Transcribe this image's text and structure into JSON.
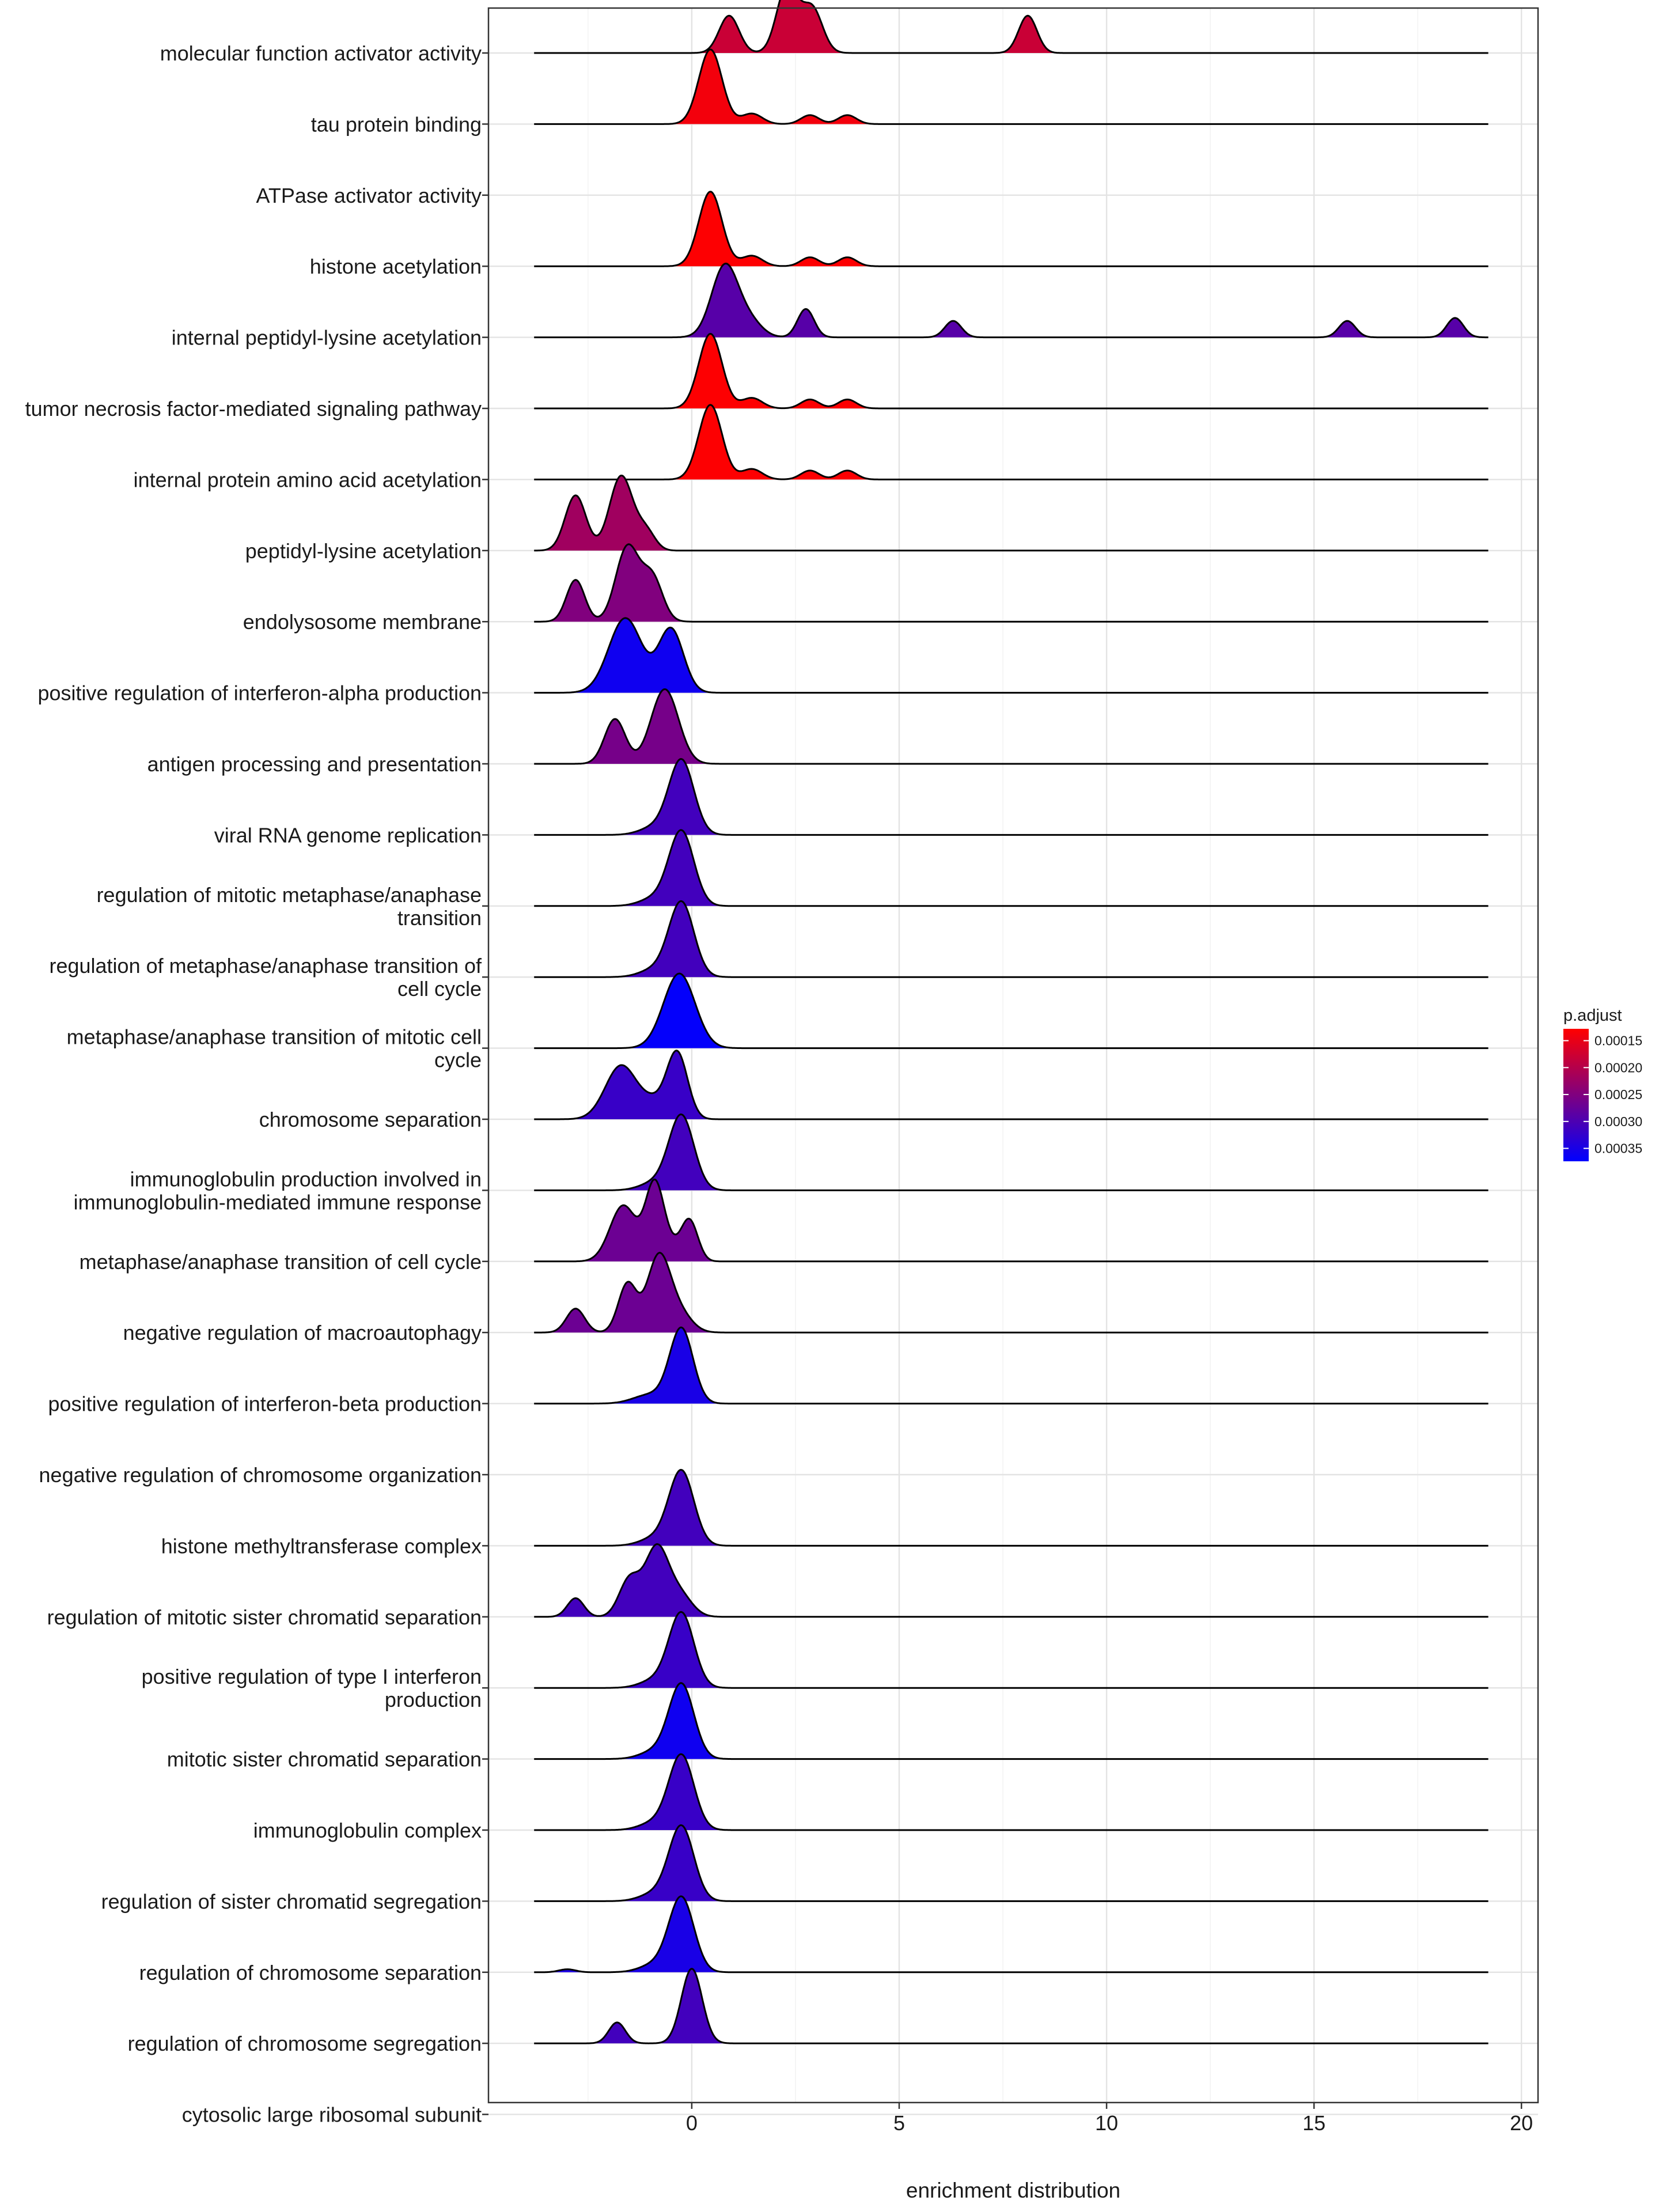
{
  "chart_data": {
    "type": "ridgeline",
    "title": "",
    "xlabel": "enrichment distribution",
    "ylabel": "",
    "xlim": [
      -4.9,
      20.4
    ],
    "x_ticks": [
      0,
      5,
      10,
      15,
      20
    ],
    "x_tick_labels": [
      "0",
      "5",
      "10",
      "15",
      "20"
    ],
    "grid": true,
    "legend": {
      "title": "p.adjust",
      "placement": "right",
      "ticks": [
        "0.00015",
        "0.00020",
        "0.00025",
        "0.00030",
        "0.00035"
      ],
      "tick_values": [
        0.00015,
        0.0002,
        0.00025,
        0.0003,
        0.00035
      ],
      "range": [
        0.000128,
        0.000374
      ],
      "low_color": "#ff0000",
      "high_color": "#0000ff"
    },
    "series": [
      {
        "name": "molecular function activator activity",
        "lines": [
          "molecular function activator activity"
        ],
        "p_adjust": 0.00018,
        "xmin": -3.8,
        "xmax": 19.2,
        "peaks": [
          [
            0.9,
            0.24,
            0.5
          ],
          [
            2.3,
            0.25,
            0.9
          ],
          [
            2.9,
            0.25,
            0.6
          ],
          [
            8.1,
            0.22,
            0.5
          ]
        ]
      },
      {
        "name": "tau protein binding",
        "lines": [
          "tau protein binding"
        ],
        "p_adjust": 0.00014,
        "xmin": -3.8,
        "xmax": 19.2,
        "peaks": [
          [
            0.45,
            0.28,
            1.0
          ],
          [
            1.45,
            0.25,
            0.14
          ],
          [
            2.85,
            0.22,
            0.12
          ],
          [
            3.75,
            0.22,
            0.12
          ]
        ]
      },
      {
        "name": "ATPase activator activity",
        "lines": [
          "ATPase activator activity"
        ],
        "p_adjust": 0.00013,
        "xmin": -3.8,
        "xmax": 19.2,
        "peaks": []
      },
      {
        "name": "histone acetylation",
        "lines": [
          "histone acetylation"
        ],
        "p_adjust": 0.00013,
        "xmin": -3.8,
        "xmax": 19.2,
        "peaks": [
          [
            0.45,
            0.28,
            1.0
          ],
          [
            1.45,
            0.25,
            0.14
          ],
          [
            2.85,
            0.22,
            0.12
          ],
          [
            3.75,
            0.22,
            0.12
          ]
        ]
      },
      {
        "name": "internal peptidyl-lysine acetylation",
        "lines": [
          "internal peptidyl-lysine acetylation"
        ],
        "p_adjust": 0.00029,
        "xmin": -3.8,
        "xmax": 19.2,
        "peaks": [
          [
            0.8,
            0.32,
            0.96
          ],
          [
            1.4,
            0.3,
            0.2
          ],
          [
            2.75,
            0.2,
            0.38
          ],
          [
            6.3,
            0.2,
            0.22
          ],
          [
            15.8,
            0.2,
            0.22
          ],
          [
            18.4,
            0.2,
            0.26
          ]
        ]
      },
      {
        "name": "tumor necrosis factor-mediated signaling pathway",
        "lines": [
          "tumor necrosis factor-mediated signaling pathway"
        ],
        "p_adjust": 0.00013,
        "xmin": -3.8,
        "xmax": 19.2,
        "peaks": [
          [
            0.45,
            0.28,
            1.0
          ],
          [
            1.45,
            0.25,
            0.14
          ],
          [
            2.85,
            0.22,
            0.12
          ],
          [
            3.75,
            0.22,
            0.12
          ]
        ]
      },
      {
        "name": "internal protein amino acid acetylation",
        "lines": [
          "internal protein amino acid acetylation"
        ],
        "p_adjust": 0.00013,
        "xmin": -3.8,
        "xmax": 19.2,
        "peaks": [
          [
            0.45,
            0.28,
            1.0
          ],
          [
            1.45,
            0.25,
            0.14
          ],
          [
            2.85,
            0.22,
            0.12
          ],
          [
            3.75,
            0.22,
            0.12
          ]
        ]
      },
      {
        "name": "peptidyl-lysine acetylation",
        "lines": [
          "peptidyl-lysine acetylation"
        ],
        "p_adjust": 0.00022,
        "xmin": -3.8,
        "xmax": 19.2,
        "peaks": [
          [
            -2.8,
            0.25,
            0.74
          ],
          [
            -1.7,
            0.28,
            1.0
          ],
          [
            -1.1,
            0.22,
            0.25
          ]
        ]
      },
      {
        "name": "endolysosome membrane",
        "lines": [
          "endolysosome membrane"
        ],
        "p_adjust": 0.00025,
        "xmin": -3.8,
        "xmax": 19.2,
        "peaks": [
          [
            -2.8,
            0.22,
            0.56
          ],
          [
            -1.55,
            0.28,
            1.0
          ],
          [
            -0.95,
            0.25,
            0.58
          ]
        ]
      },
      {
        "name": "positive regulation of interferon-alpha production",
        "lines": [
          "positive regulation of interferon-alpha production"
        ],
        "p_adjust": 0.00036,
        "xmin": -3.8,
        "xmax": 19.2,
        "peaks": [
          [
            -1.6,
            0.4,
            1.0
          ],
          [
            -0.5,
            0.3,
            0.85
          ]
        ]
      },
      {
        "name": "antigen processing and presentation",
        "lines": [
          "antigen processing and presentation"
        ],
        "p_adjust": 0.00026,
        "xmin": -3.8,
        "xmax": 19.2,
        "peaks": [
          [
            -1.85,
            0.25,
            0.6
          ],
          [
            -0.65,
            0.33,
            1.0
          ]
        ]
      },
      {
        "name": "viral RNA genome replication",
        "lines": [
          "viral RNA genome replication"
        ],
        "p_adjust": 0.00031,
        "xmin": -3.8,
        "xmax": 19.2,
        "peaks": [
          [
            -0.25,
            0.3,
            1.0
          ],
          [
            -0.9,
            0.35,
            0.1
          ]
        ]
      },
      {
        "name": "regulation of mitotic metaphase/anaphase transition",
        "lines": [
          "regulation of mitotic metaphase/anaphase",
          "transition"
        ],
        "p_adjust": 0.00031,
        "xmin": -3.8,
        "xmax": 19.2,
        "peaks": [
          [
            -0.25,
            0.3,
            1.0
          ],
          [
            -0.9,
            0.35,
            0.1
          ]
        ]
      },
      {
        "name": "regulation of metaphase/anaphase transition of cell cycle",
        "lines": [
          "regulation of metaphase/anaphase transition of",
          "cell cycle"
        ],
        "p_adjust": 0.00031,
        "xmin": -3.8,
        "xmax": 19.2,
        "peaks": [
          [
            -0.25,
            0.3,
            1.0
          ],
          [
            -0.9,
            0.35,
            0.1
          ]
        ]
      },
      {
        "name": "metaphase/anaphase transition of mitotic cell cycle",
        "lines": [
          "metaphase/anaphase transition of mitotic cell",
          "cycle"
        ],
        "p_adjust": 0.00037,
        "xmin": -3.8,
        "xmax": 19.2,
        "peaks": [
          [
            -0.3,
            0.38,
            1.0
          ]
        ]
      },
      {
        "name": "chromosome separation",
        "lines": [
          "chromosome separation"
        ],
        "p_adjust": 0.00032,
        "xmin": -3.8,
        "xmax": 19.2,
        "peaks": [
          [
            -1.7,
            0.38,
            0.72
          ],
          [
            -0.35,
            0.25,
            0.88
          ],
          [
            -0.9,
            0.3,
            0.2
          ]
        ]
      },
      {
        "name": "immunoglobulin production involved in immunoglobulin-mediated immune response",
        "lines": [
          "immunoglobulin production involved in",
          "immunoglobulin-mediated immune response"
        ],
        "p_adjust": 0.00031,
        "xmin": -3.8,
        "xmax": 19.2,
        "peaks": [
          [
            -0.25,
            0.3,
            1.0
          ],
          [
            -0.9,
            0.35,
            0.1
          ]
        ]
      },
      {
        "name": "metaphase/anaphase transition of cell cycle",
        "lines": [
          "metaphase/anaphase transition of cell cycle"
        ],
        "p_adjust": 0.00027,
        "xmin": -3.8,
        "xmax": 19.2,
        "peaks": [
          [
            -1.65,
            0.32,
            0.75
          ],
          [
            -0.9,
            0.22,
            0.95
          ],
          [
            -0.05,
            0.2,
            0.52
          ],
          [
            -0.55,
            0.3,
            0.2
          ]
        ]
      },
      {
        "name": "negative regulation of macroautophagy",
        "lines": [
          "negative regulation of macroautophagy"
        ],
        "p_adjust": 0.00027,
        "xmin": -3.8,
        "xmax": 19.2,
        "peaks": [
          [
            -2.8,
            0.22,
            0.32
          ],
          [
            -1.55,
            0.22,
            0.65
          ],
          [
            -0.8,
            0.28,
            1.0
          ],
          [
            -0.3,
            0.3,
            0.25
          ]
        ]
      },
      {
        "name": "positive regulation of interferon-beta production",
        "lines": [
          "positive regulation of interferon-beta production"
        ],
        "p_adjust": 0.00035,
        "xmin": -3.8,
        "xmax": 19.2,
        "peaks": [
          [
            -0.25,
            0.28,
            1.0
          ],
          [
            -1.0,
            0.4,
            0.12
          ]
        ]
      },
      {
        "name": "negative regulation of chromosome organization",
        "lines": [
          "negative regulation of chromosome organization"
        ],
        "p_adjust": 0.00031,
        "xmin": -3.8,
        "xmax": 19.2,
        "peaks": []
      },
      {
        "name": "histone methyltransferase complex",
        "lines": [
          "histone methyltransferase complex"
        ],
        "p_adjust": 0.00031,
        "xmin": -3.8,
        "xmax": 19.2,
        "peaks": [
          [
            -0.25,
            0.3,
            1.0
          ],
          [
            -0.9,
            0.35,
            0.1
          ]
        ]
      },
      {
        "name": "regulation of mitotic sister chromatid separation",
        "lines": [
          "regulation of mitotic sister chromatid separation"
        ],
        "p_adjust": 0.00031,
        "xmin": -3.8,
        "xmax": 19.2,
        "peaks": [
          [
            -2.8,
            0.2,
            0.25
          ],
          [
            -1.5,
            0.25,
            0.5
          ],
          [
            -0.85,
            0.28,
            0.9
          ],
          [
            -0.3,
            0.3,
            0.3
          ]
        ]
      },
      {
        "name": "positive regulation of type I interferon production",
        "lines": [
          "positive regulation of type I interferon",
          "production"
        ],
        "p_adjust": 0.00032,
        "xmin": -3.8,
        "xmax": 19.2,
        "peaks": [
          [
            -0.25,
            0.3,
            1.0
          ],
          [
            -0.9,
            0.35,
            0.1
          ]
        ]
      },
      {
        "name": "mitotic sister chromatid separation",
        "lines": [
          "mitotic sister chromatid separation"
        ],
        "p_adjust": 0.00036,
        "xmin": -3.8,
        "xmax": 19.2,
        "peaks": [
          [
            -0.25,
            0.3,
            1.0
          ],
          [
            -0.9,
            0.35,
            0.1
          ]
        ]
      },
      {
        "name": "immunoglobulin complex",
        "lines": [
          "immunoglobulin complex"
        ],
        "p_adjust": 0.00032,
        "xmin": -3.8,
        "xmax": 19.2,
        "peaks": [
          [
            -0.25,
            0.3,
            1.0
          ],
          [
            -0.9,
            0.35,
            0.1
          ]
        ]
      },
      {
        "name": "regulation of sister chromatid segregation",
        "lines": [
          "regulation of sister chromatid segregation"
        ],
        "p_adjust": 0.00032,
        "xmin": -3.8,
        "xmax": 19.2,
        "peaks": [
          [
            -0.25,
            0.3,
            1.0
          ],
          [
            -0.9,
            0.35,
            0.1
          ]
        ]
      },
      {
        "name": "regulation of chromosome separation",
        "lines": [
          "regulation of chromosome separation"
        ],
        "p_adjust": 0.00035,
        "xmin": -3.8,
        "xmax": 19.2,
        "peaks": [
          [
            -0.25,
            0.3,
            1.0
          ],
          [
            -0.9,
            0.35,
            0.1
          ],
          [
            -3.0,
            0.2,
            0.04
          ]
        ]
      },
      {
        "name": "regulation of chromosome segregation",
        "lines": [
          "regulation of chromosome segregation"
        ],
        "p_adjust": 0.00031,
        "xmin": -3.8,
        "xmax": 19.2,
        "peaks": [
          [
            0.0,
            0.25,
            1.0
          ],
          [
            -1.8,
            0.2,
            0.28
          ]
        ]
      },
      {
        "name": "cytosolic large ribosomal subunit",
        "lines": [
          "cytosolic large ribosomal subunit"
        ],
        "p_adjust": 0.00031,
        "xmin": -3.8,
        "xmax": 19.2,
        "peaks": []
      }
    ]
  }
}
